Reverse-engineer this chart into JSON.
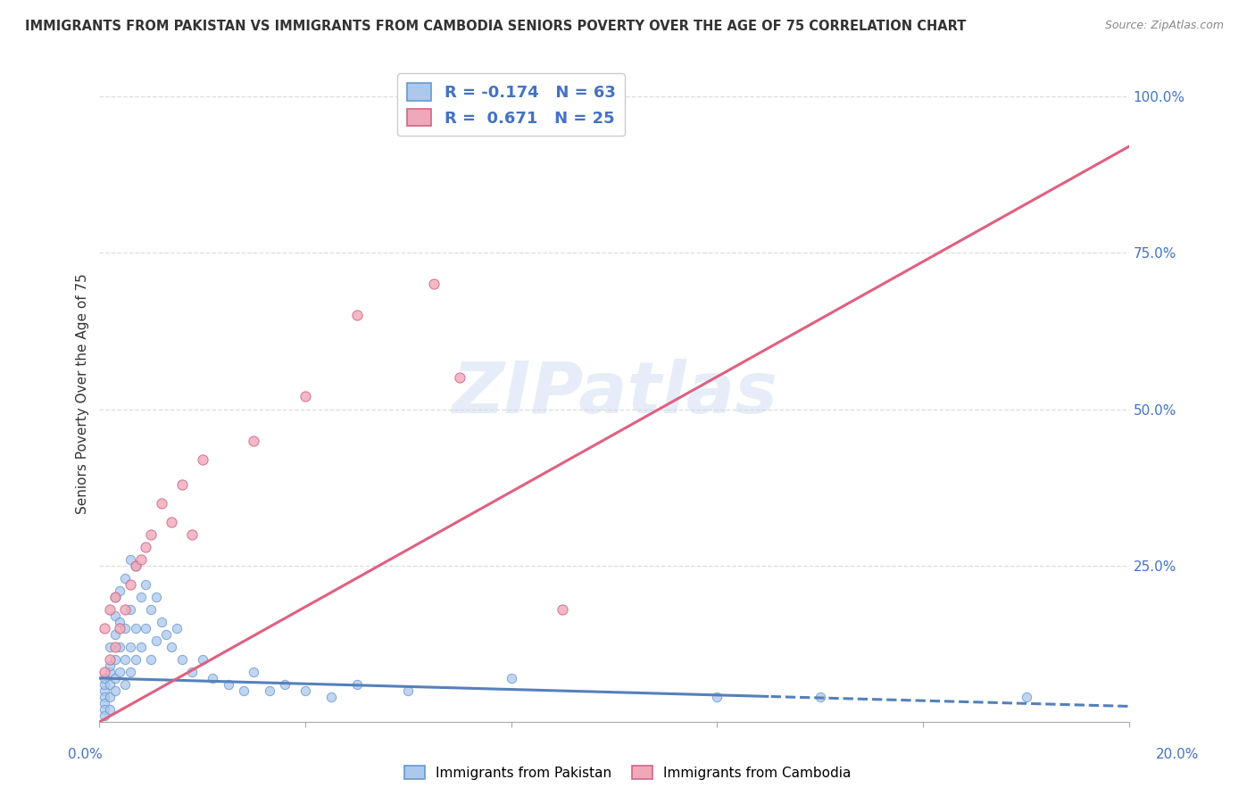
{
  "title": "IMMIGRANTS FROM PAKISTAN VS IMMIGRANTS FROM CAMBODIA SENIORS POVERTY OVER THE AGE OF 75 CORRELATION CHART",
  "source": "Source: ZipAtlas.com",
  "ylabel": "Seniors Poverty Over the Age of 75",
  "xmin": 0.0,
  "xmax": 0.2,
  "ymin": 0.0,
  "ymax": 1.05,
  "watermark": "ZIPatlas",
  "pakistan_color": "#adc8ed",
  "pakistan_edge_color": "#6699cc",
  "pakistan_line_color": "#5580bb",
  "cambodia_color": "#f0a8b8",
  "cambodia_edge_color": "#cc6688",
  "cambodia_line_color": "#e06080",
  "R_pakistan": -0.174,
  "N_pakistan": 63,
  "R_cambodia": 0.671,
  "N_cambodia": 25,
  "legend_blue_label": "Immigrants from Pakistan",
  "legend_pink_label": "Immigrants from Cambodia",
  "pak_line_x0": 0.0,
  "pak_line_y0": 0.07,
  "pak_line_x1": 0.2,
  "pak_line_y1": 0.025,
  "cam_line_x0": 0.0,
  "cam_line_y0": 0.0,
  "cam_line_x1": 0.2,
  "cam_line_y1": 0.92,
  "background_color": "#ffffff",
  "grid_color": "#dddddd",
  "pakistan_x": [
    0.001,
    0.001,
    0.001,
    0.001,
    0.001,
    0.001,
    0.001,
    0.002,
    0.002,
    0.002,
    0.002,
    0.002,
    0.002,
    0.003,
    0.003,
    0.003,
    0.003,
    0.003,
    0.003,
    0.004,
    0.004,
    0.004,
    0.004,
    0.005,
    0.005,
    0.005,
    0.005,
    0.006,
    0.006,
    0.006,
    0.006,
    0.007,
    0.007,
    0.007,
    0.008,
    0.008,
    0.009,
    0.009,
    0.01,
    0.01,
    0.011,
    0.011,
    0.012,
    0.013,
    0.014,
    0.015,
    0.016,
    0.018,
    0.02,
    0.022,
    0.025,
    0.028,
    0.03,
    0.033,
    0.036,
    0.04,
    0.045,
    0.05,
    0.06,
    0.08,
    0.12,
    0.14,
    0.18
  ],
  "pakistan_y": [
    0.05,
    0.04,
    0.03,
    0.02,
    0.01,
    0.06,
    0.07,
    0.08,
    0.06,
    0.04,
    0.02,
    0.09,
    0.12,
    0.1,
    0.07,
    0.05,
    0.14,
    0.17,
    0.2,
    0.08,
    0.12,
    0.16,
    0.21,
    0.06,
    0.1,
    0.15,
    0.23,
    0.08,
    0.12,
    0.18,
    0.26,
    0.1,
    0.15,
    0.25,
    0.12,
    0.2,
    0.15,
    0.22,
    0.1,
    0.18,
    0.13,
    0.2,
    0.16,
    0.14,
    0.12,
    0.15,
    0.1,
    0.08,
    0.1,
    0.07,
    0.06,
    0.05,
    0.08,
    0.05,
    0.06,
    0.05,
    0.04,
    0.06,
    0.05,
    0.07,
    0.04,
    0.04,
    0.04
  ],
  "cambodia_x": [
    0.001,
    0.001,
    0.002,
    0.002,
    0.003,
    0.003,
    0.004,
    0.005,
    0.006,
    0.007,
    0.008,
    0.009,
    0.01,
    0.012,
    0.014,
    0.016,
    0.018,
    0.02,
    0.03,
    0.04,
    0.05,
    0.065,
    0.07,
    0.09,
    0.1
  ],
  "cambodia_y": [
    0.08,
    0.15,
    0.1,
    0.18,
    0.12,
    0.2,
    0.15,
    0.18,
    0.22,
    0.25,
    0.26,
    0.28,
    0.3,
    0.35,
    0.32,
    0.38,
    0.3,
    0.42,
    0.45,
    0.52,
    0.65,
    0.7,
    0.55,
    0.18,
    1.02
  ]
}
